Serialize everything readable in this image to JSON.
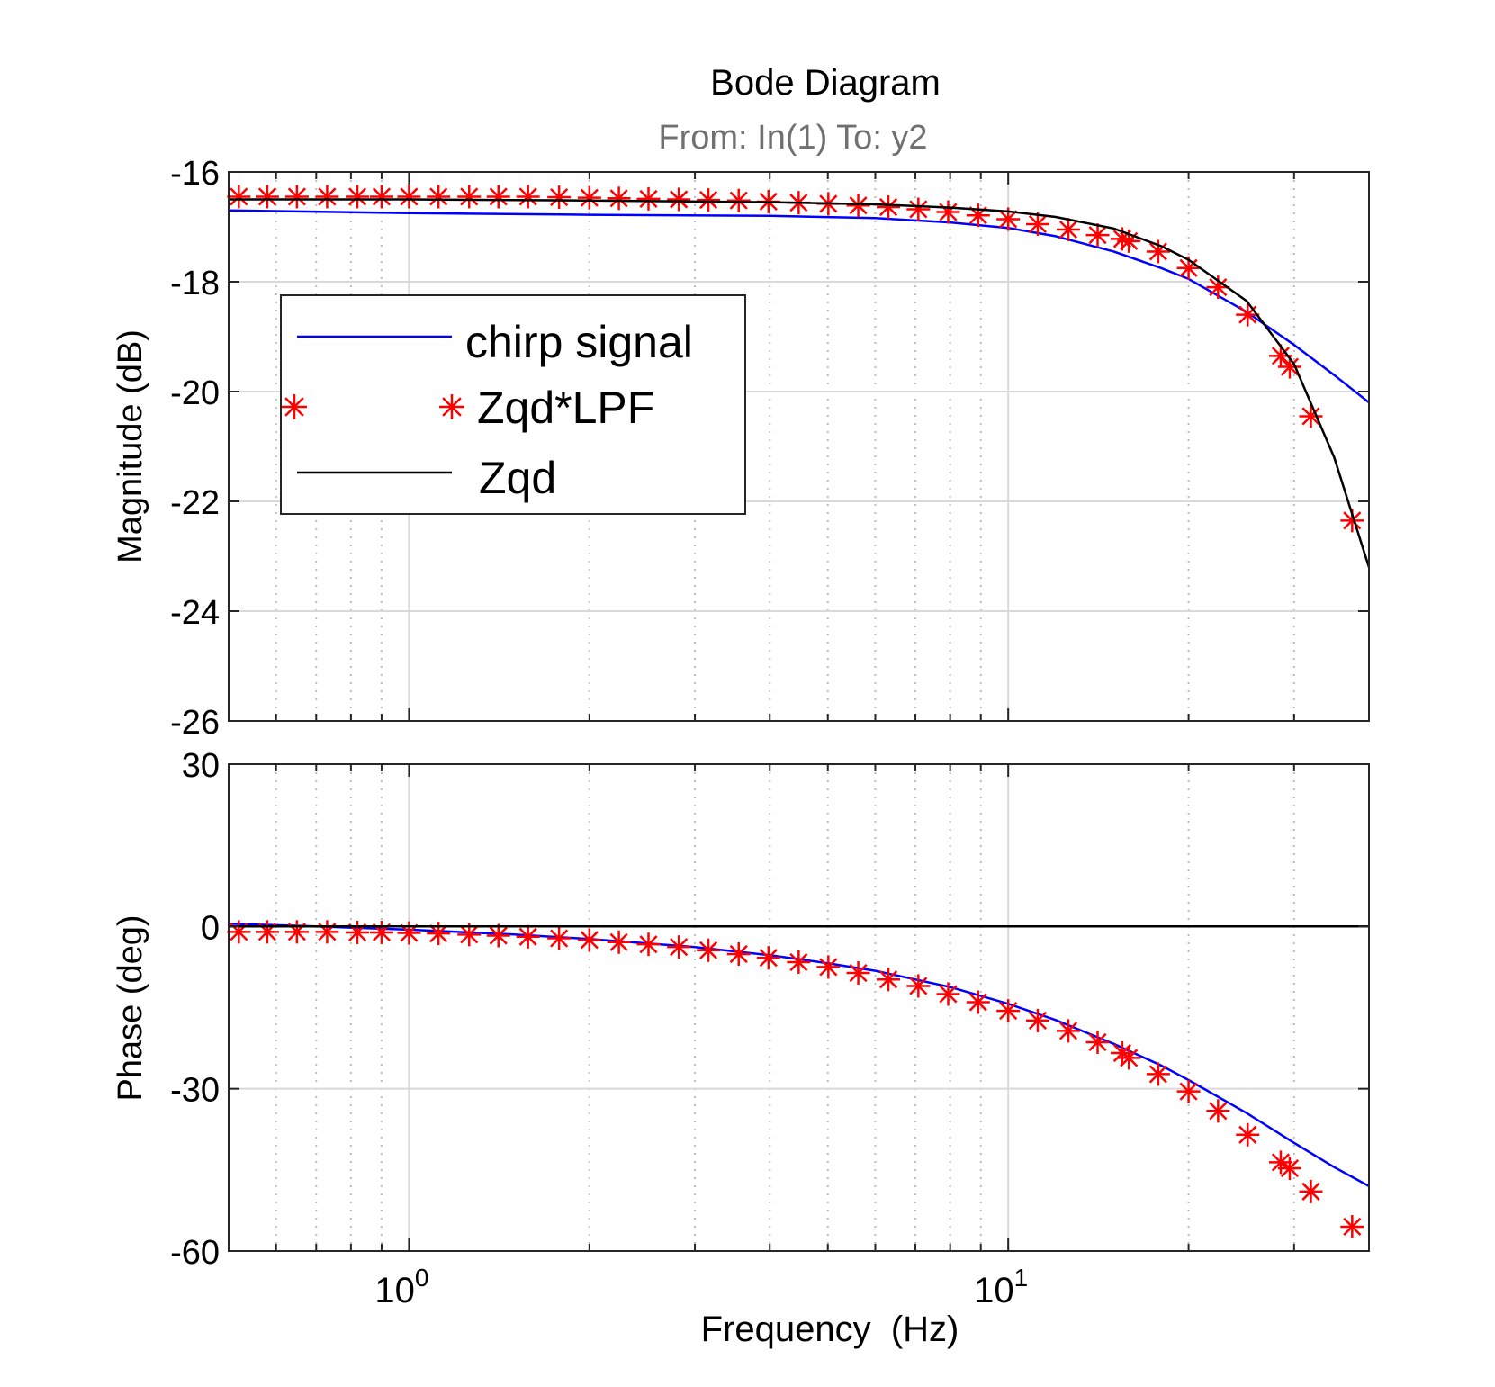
{
  "title": "Bode Diagram",
  "subtitle": "From: In(1)  To: y2",
  "colors": {
    "chirp": "#0000ff",
    "lpf": "#ff0000",
    "zqd": "#000000",
    "subtitle": "#707070",
    "grid": "#d9d9d9"
  },
  "legend": {
    "items": [
      "chirp signal",
      "Zqd*LPF",
      "Zqd"
    ],
    "location": "upper-left of magnitude panel"
  },
  "chart_data": [
    {
      "type": "line",
      "panel": "magnitude",
      "title": "Bode Diagram",
      "subtitle": "From: In(1)  To: y2",
      "xlabel": "Frequency  (Hz)",
      "ylabel": "Magnitude (dB)",
      "xscale": "log",
      "xlim": [
        0.5,
        40
      ],
      "ylim": [
        -26,
        -16
      ],
      "yticks": [
        -26,
        -24,
        -22,
        -20,
        -18,
        -16
      ],
      "ytick_labels": [
        "-26",
        "-24",
        "-22",
        "-20",
        "-18",
        "-16"
      ],
      "grid": true,
      "series": [
        {
          "name": "chirp signal",
          "style": "line",
          "x": [
            0.5,
            1,
            2,
            4,
            6,
            8,
            10,
            12,
            15,
            18,
            20,
            25,
            30,
            35,
            40
          ],
          "y": [
            -16.7,
            -16.75,
            -16.78,
            -16.8,
            -16.84,
            -16.92,
            -17.02,
            -17.17,
            -17.45,
            -17.75,
            -17.95,
            -18.55,
            -19.15,
            -19.7,
            -20.2
          ]
        },
        {
          "name": "Zqd*LPF",
          "style": "markers",
          "x": [
            0.52,
            0.58,
            0.65,
            0.73,
            0.82,
            0.9,
            1.0,
            1.12,
            1.26,
            1.41,
            1.58,
            1.78,
            2.0,
            2.24,
            2.51,
            2.82,
            3.16,
            3.55,
            3.98,
            4.47,
            5.01,
            5.62,
            6.31,
            7.08,
            7.94,
            8.91,
            10.0,
            11.2,
            12.6,
            14.1,
            15.5,
            15.9,
            17.8,
            20.0,
            22.4,
            25.1,
            28.5,
            29.5,
            32.0,
            37.5
          ],
          "y": [
            -16.45,
            -16.45,
            -16.45,
            -16.45,
            -16.45,
            -16.45,
            -16.45,
            -16.45,
            -16.45,
            -16.45,
            -16.45,
            -16.46,
            -16.47,
            -16.48,
            -16.49,
            -16.5,
            -16.51,
            -16.52,
            -16.54,
            -16.56,
            -16.58,
            -16.61,
            -16.64,
            -16.68,
            -16.73,
            -16.79,
            -16.86,
            -16.95,
            -17.05,
            -17.15,
            -17.22,
            -17.26,
            -17.45,
            -17.75,
            -18.1,
            -18.6,
            -19.35,
            -19.55,
            -20.45,
            -22.35
          ]
        },
        {
          "name": "Zqd",
          "style": "line",
          "x": [
            0.5,
            1,
            2,
            4,
            6,
            8,
            10,
            12,
            15,
            18,
            20,
            25,
            30,
            35,
            40
          ],
          "y": [
            -16.5,
            -16.5,
            -16.52,
            -16.55,
            -16.59,
            -16.65,
            -16.72,
            -16.82,
            -17.03,
            -17.35,
            -17.6,
            -18.35,
            -19.5,
            -21.2,
            -23.2
          ]
        }
      ]
    },
    {
      "type": "line",
      "panel": "phase",
      "xlabel": "Frequency  (Hz)",
      "ylabel": "Phase (deg)",
      "xscale": "log",
      "xlim": [
        0.5,
        40
      ],
      "ylim": [
        -60,
        30
      ],
      "yticks": [
        -60,
        -30,
        0,
        30
      ],
      "ytick_labels": [
        "-60",
        "-30",
        "0",
        "30"
      ],
      "xticks": [
        1,
        10
      ],
      "xtick_labels": [
        {
          "base": "10",
          "exp": "0"
        },
        {
          "base": "10",
          "exp": "1"
        }
      ],
      "grid": true,
      "series": [
        {
          "name": "chirp signal",
          "style": "line",
          "x": [
            0.5,
            0.7,
            1,
            1.5,
            2,
            3,
            4,
            5,
            6,
            8,
            10,
            12,
            15,
            18,
            20,
            25,
            30,
            35,
            40
          ],
          "y": [
            0.5,
            0,
            -0.6,
            -1.5,
            -2.3,
            -3.8,
            -5.3,
            -6.8,
            -8.2,
            -11.2,
            -14.3,
            -17.3,
            -21.7,
            -25.7,
            -28.4,
            -34.5,
            -40.0,
            -44.5,
            -48.0
          ]
        },
        {
          "name": "Zqd*LPF",
          "style": "markers",
          "x": [
            0.52,
            0.58,
            0.65,
            0.73,
            0.82,
            0.9,
            1.0,
            1.12,
            1.26,
            1.41,
            1.58,
            1.78,
            2.0,
            2.24,
            2.51,
            2.82,
            3.16,
            3.55,
            3.98,
            4.47,
            5.01,
            5.62,
            6.31,
            7.08,
            7.94,
            8.91,
            10.0,
            11.2,
            12.6,
            14.1,
            15.5,
            15.9,
            17.8,
            20.0,
            22.4,
            25.1,
            28.5,
            29.5,
            32.0,
            37.5
          ],
          "y": [
            -1.0,
            -1.0,
            -1.0,
            -1.0,
            -1.1,
            -1.1,
            -1.2,
            -1.3,
            -1.5,
            -1.7,
            -1.9,
            -2.2,
            -2.5,
            -2.9,
            -3.3,
            -3.8,
            -4.4,
            -5.1,
            -5.8,
            -6.6,
            -7.5,
            -8.6,
            -9.8,
            -11.0,
            -12.5,
            -14.0,
            -15.6,
            -17.4,
            -19.3,
            -21.4,
            -23.4,
            -24.3,
            -27.3,
            -30.5,
            -34.1,
            -38.5,
            -43.6,
            -44.7,
            -49.0,
            -55.5
          ]
        },
        {
          "name": "Zqd",
          "style": "line",
          "x": [
            0.5,
            40
          ],
          "y": [
            0,
            0
          ]
        }
      ]
    }
  ]
}
